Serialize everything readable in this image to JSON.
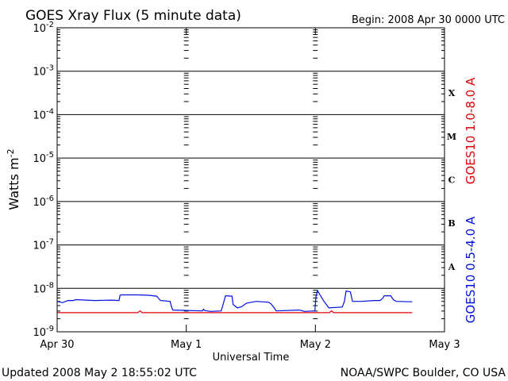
{
  "chart_data": {
    "type": "line",
    "title": "GOES Xray Flux (5 minute data)",
    "begin": "Begin:  2008 Apr 30 0000 UTC",
    "ylabel": "Watts m",
    "ylabel_sup": "-2",
    "xlabel": "Universal Time",
    "footer_left": "Updated 2008 May  2 18:55:02 UTC",
    "footer_right": "NOAA/SWPC Boulder, CO USA",
    "x_unit": "hours since 2008 Apr 30 0000 UTC",
    "xlim": [
      0,
      72
    ],
    "ylim_exp": [
      -9,
      -2
    ],
    "log_scale": true,
    "x_ticks": [
      {
        "x": 0,
        "label": "Apr 30"
      },
      {
        "x": 24,
        "label": "May 1"
      },
      {
        "x": 48,
        "label": "May 2"
      },
      {
        "x": 72,
        "label": "May 3"
      }
    ],
    "y_ticks": [
      {
        "exp": -9,
        "base": "10",
        "sup": "-9"
      },
      {
        "exp": -8,
        "base": "10",
        "sup": "-8"
      },
      {
        "exp": -7,
        "base": "10",
        "sup": "-7"
      },
      {
        "exp": -6,
        "base": "10",
        "sup": "-6"
      },
      {
        "exp": -5,
        "base": "10",
        "sup": "-5"
      },
      {
        "exp": -4,
        "base": "10",
        "sup": "-4"
      },
      {
        "exp": -3,
        "base": "10",
        "sup": "-3"
      },
      {
        "exp": -2,
        "base": "10",
        "sup": "-2"
      }
    ],
    "flare_classes": [
      {
        "label": "X",
        "exp": -3.5
      },
      {
        "label": "M",
        "exp": -4.5
      },
      {
        "label": "C",
        "exp": -5.5
      },
      {
        "label": "B",
        "exp": -6.5
      },
      {
        "label": "A",
        "exp": -7.5
      }
    ],
    "series": [
      {
        "name": "GOES10 1.0-8.0 A",
        "color": "#e0000a",
        "points": [
          [
            0,
            -8.56
          ],
          [
            15,
            -8.56
          ],
          [
            15.4,
            -8.52
          ],
          [
            15.8,
            -8.56
          ],
          [
            50.6,
            -8.56
          ],
          [
            51.0,
            -8.52
          ],
          [
            51.4,
            -8.56
          ],
          [
            66,
            -8.56
          ]
        ]
      },
      {
        "name": "GOES10 0.5-4.0 A",
        "color": "#0010e0",
        "points": [
          [
            0,
            -8.3
          ],
          [
            1,
            -8.33
          ],
          [
            2,
            -8.28
          ],
          [
            3,
            -8.28
          ],
          [
            3.5,
            -8.26
          ],
          [
            7,
            -8.28
          ],
          [
            10,
            -8.27
          ],
          [
            11.5,
            -8.28
          ],
          [
            11.7,
            -8.16
          ],
          [
            11.9,
            -8.15
          ],
          [
            15,
            -8.15
          ],
          [
            17,
            -8.16
          ],
          [
            18.5,
            -8.18
          ],
          [
            19.2,
            -8.28
          ],
          [
            21,
            -8.3
          ],
          [
            21.3,
            -8.44
          ],
          [
            21.5,
            -8.5
          ],
          [
            27,
            -8.52
          ],
          [
            27.2,
            -8.48
          ],
          [
            27.4,
            -8.51
          ],
          [
            28.5,
            -8.53
          ],
          [
            30.5,
            -8.52
          ],
          [
            30.9,
            -8.35
          ],
          [
            31.3,
            -8.17
          ],
          [
            32.5,
            -8.18
          ],
          [
            32.7,
            -8.37
          ],
          [
            33.5,
            -8.45
          ],
          [
            34.3,
            -8.42
          ],
          [
            35.2,
            -8.34
          ],
          [
            37,
            -8.3
          ],
          [
            39.3,
            -8.32
          ],
          [
            39.7,
            -8.35
          ],
          [
            40.3,
            -8.44
          ],
          [
            40.7,
            -8.52
          ],
          [
            45,
            -8.5
          ],
          [
            46,
            -8.53
          ],
          [
            47.9,
            -8.52
          ],
          [
            48.1,
            -8.2
          ],
          [
            48.4,
            -8.05
          ],
          [
            48.8,
            -8.14
          ],
          [
            49.6,
            -8.3
          ],
          [
            50.5,
            -8.45
          ],
          [
            53,
            -8.43
          ],
          [
            53.4,
            -8.3
          ],
          [
            53.7,
            -8.06
          ],
          [
            54.5,
            -8.08
          ],
          [
            54.9,
            -8.3
          ],
          [
            56.5,
            -8.3
          ],
          [
            59,
            -8.28
          ],
          [
            60,
            -8.28
          ],
          [
            60.5,
            -8.23
          ],
          [
            60.8,
            -8.17
          ],
          [
            62,
            -8.17
          ],
          [
            62.5,
            -8.26
          ],
          [
            63,
            -8.3
          ],
          [
            66,
            -8.31
          ]
        ]
      }
    ]
  }
}
